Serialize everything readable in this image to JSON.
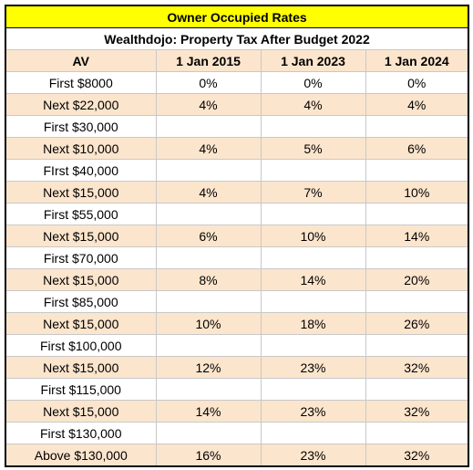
{
  "title": "Owner Occupied Rates",
  "subtitle": "Wealthdojo: Property Tax After Budget 2022",
  "table": {
    "header": [
      "AV",
      "1 Jan 2015",
      "1 Jan 2023",
      "1 Jan 2024"
    ],
    "rows": [
      [
        "First $8000",
        "0%",
        "0%",
        "0%"
      ],
      [
        "Next $22,000",
        "4%",
        "4%",
        "4%"
      ],
      [
        "First $30,000",
        null,
        null,
        null
      ],
      [
        "Next $10,000",
        "4%",
        "5%",
        "6%"
      ],
      [
        "FIrst $40,000",
        null,
        null,
        null
      ],
      [
        "Next $15,000",
        "4%",
        "7%",
        "10%"
      ],
      [
        "First $55,000",
        null,
        null,
        null
      ],
      [
        "Next $15,000",
        "6%",
        "10%",
        "14%"
      ],
      [
        "First $70,000",
        null,
        null,
        null
      ],
      [
        "Next $15,000",
        "8%",
        "14%",
        "20%"
      ],
      [
        "First $85,000",
        null,
        null,
        null
      ],
      [
        "Next $15,000",
        "10%",
        "18%",
        "26%"
      ],
      [
        "First $100,000",
        null,
        null,
        null
      ],
      [
        "Next $15,000",
        "12%",
        "23%",
        "32%"
      ],
      [
        "First $115,000",
        null,
        null,
        null
      ],
      [
        "Next $15,000",
        "14%",
        "23%",
        "32%"
      ],
      [
        "First $130,000",
        null,
        null,
        null
      ],
      [
        "Above $130,000",
        "16%",
        "23%",
        "32%"
      ]
    ]
  }
}
